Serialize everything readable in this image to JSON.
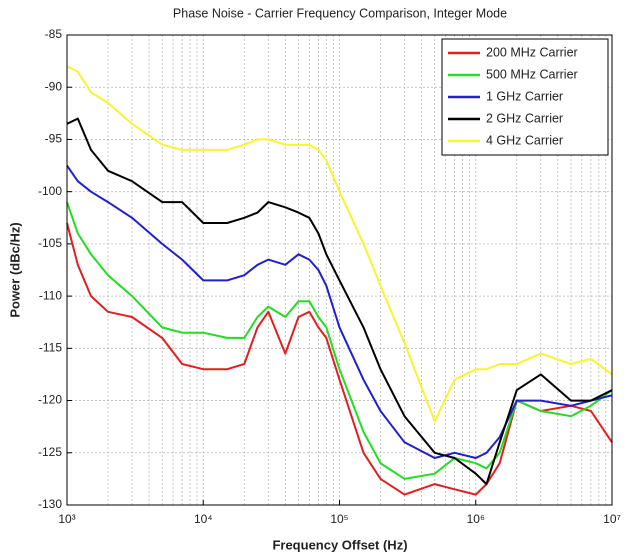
{
  "chart_data": {
    "type": "line",
    "title": "Phase Noise - Carrier Frequency Comparison, Integer Mode",
    "xlabel": "Frequency Offset (Hz)",
    "ylabel": "Power (dBc/Hz)",
    "xscale": "log",
    "grid": true,
    "legend": "upper right",
    "xlim": [
      1000,
      10000000
    ],
    "xticks": [
      {
        "value": 1000,
        "label": "10³"
      },
      {
        "value": 10000,
        "label": "10⁴"
      },
      {
        "value": 100000,
        "label": "10⁵"
      },
      {
        "value": 1000000,
        "label": "10⁶"
      },
      {
        "value": 10000000,
        "label": "10⁷"
      }
    ],
    "ylim": [
      -130,
      -85
    ],
    "yticks": [
      -130,
      -125,
      -120,
      -115,
      -110,
      -105,
      -100,
      -95,
      -90,
      -85
    ],
    "x": [
      1000,
      1200,
      1500,
      2000,
      3000,
      5000,
      7000,
      10000,
      15000,
      20000,
      25000,
      30000,
      40000,
      50000,
      60000,
      70000,
      80000,
      100000,
      150000,
      200000,
      300000,
      500000,
      700000,
      1000000,
      1200000,
      1500000,
      2000000,
      3000000,
      5000000,
      7000000,
      10000000
    ],
    "series": [
      {
        "name": "200 MHz Carrier",
        "color": "#e02020",
        "values": [
          -103,
          -107,
          -110,
          -111.5,
          -112,
          -114,
          -116.5,
          -117,
          -117,
          -116.5,
          -113,
          -111.5,
          -115.5,
          -112,
          -111.5,
          -113,
          -114,
          -118,
          -125,
          -127.5,
          -129,
          -128,
          -128.5,
          -129,
          -128,
          -126,
          -120,
          -121,
          -120.5,
          -121,
          -124
        ]
      },
      {
        "name": "500 MHz Carrier",
        "color": "#22dd22",
        "values": [
          -101,
          -104,
          -106,
          -108,
          -110,
          -113,
          -113.5,
          -113.5,
          -114,
          -114,
          -112,
          -111,
          -112,
          -110.5,
          -110.5,
          -112,
          -113,
          -117,
          -123,
          -126,
          -127.5,
          -127,
          -125.5,
          -126,
          -126.5,
          -125,
          -120,
          -121,
          -121.5,
          -120.5,
          -119
        ]
      },
      {
        "name": "1 GHz Carrier",
        "color": "#2020cc",
        "values": [
          -97.5,
          -99,
          -100,
          -101,
          -102.5,
          -105,
          -106.5,
          -108.5,
          -108.5,
          -108,
          -107,
          -106.5,
          -107,
          -106,
          -106.5,
          -107.5,
          -109,
          -113,
          -118,
          -121,
          -124,
          -125.5,
          -125,
          -125.5,
          -125,
          -123.5,
          -120,
          -120,
          -120.5,
          -120,
          -119.5
        ]
      },
      {
        "name": "2 GHz Carrier",
        "color": "#000000",
        "values": [
          -93.5,
          -93,
          -96,
          -98,
          -99,
          -101,
          -101,
          -103,
          -103,
          -102.5,
          -102,
          -101,
          -101.5,
          -102,
          -102.5,
          -104,
          -106,
          -108.5,
          -113,
          -117,
          -121.5,
          -125,
          -125.5,
          -127,
          -128,
          -124,
          -119,
          -117.5,
          -120,
          -120,
          -119
        ]
      },
      {
        "name": "4 GHz Carrier",
        "color": "#f5f530",
        "values": [
          -88,
          -88.5,
          -90.5,
          -91.5,
          -93.5,
          -95.5,
          -96,
          -96,
          -96,
          -95.5,
          -95,
          -95,
          -95.5,
          -95.5,
          -95.5,
          -96,
          -97,
          -100,
          -105,
          -109,
          -114.5,
          -122,
          -118,
          -117,
          -117,
          -116.5,
          -116.5,
          -115.5,
          -116.5,
          -116,
          -117.5
        ]
      }
    ]
  }
}
